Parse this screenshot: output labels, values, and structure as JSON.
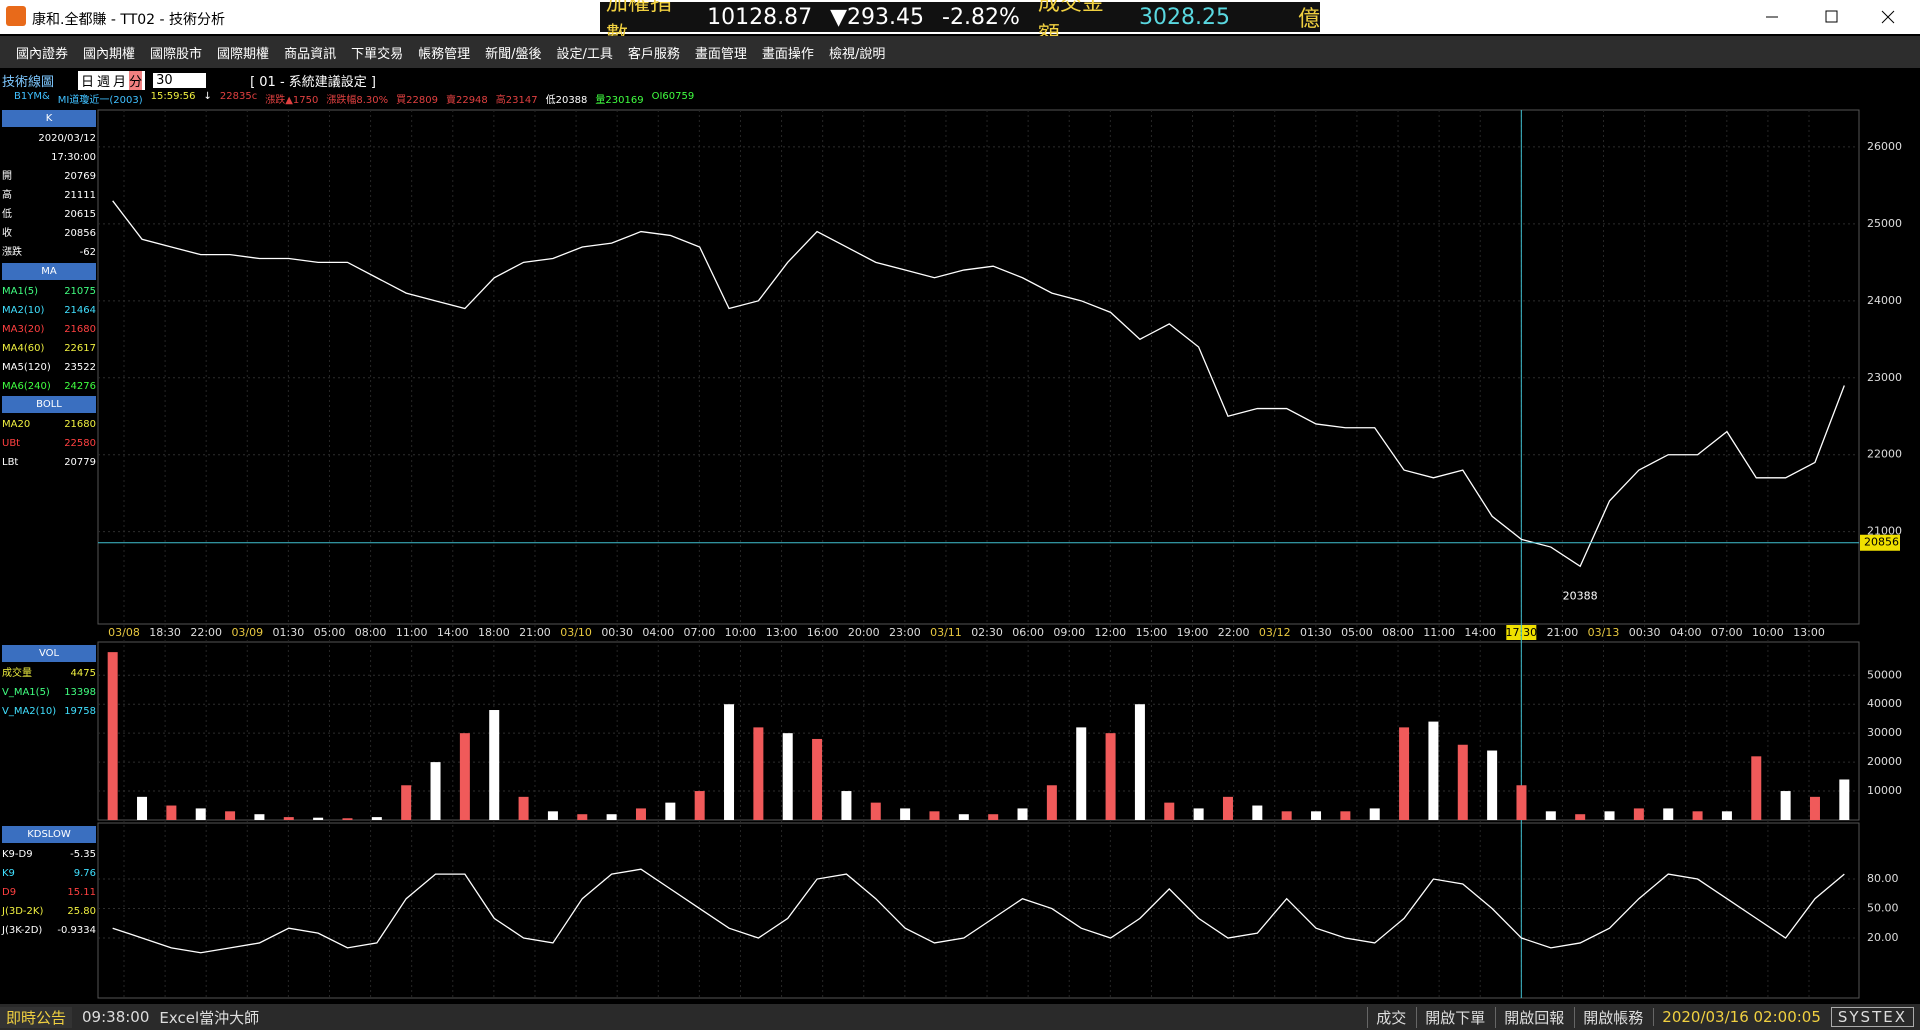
{
  "title": "康和.全都賺 - TT02 - 技術分析",
  "ticker": {
    "index_label": "加權指數",
    "index_value": "10128.87",
    "change": "▼293.45",
    "pct": "-2.82%",
    "amount_label": "成交金額",
    "amount": "3028.25",
    "unit": "億"
  },
  "menu": [
    "國內證券",
    "國內期權",
    "國際股市",
    "國際期權",
    "商品資訊",
    "下單交易",
    "帳務管理",
    "新聞/盤後",
    "設定/工具",
    "客戶服務",
    "畫面管理",
    "畫面操作",
    "檢視/說明"
  ],
  "toolbar": {
    "title": "技術線圖",
    "periods": [
      "日",
      "週",
      "月",
      "分"
    ],
    "interval": "30",
    "setting": "[ 01 - 系統建議設定 ]"
  },
  "info_row": [
    "B1YM&",
    "MI道瓊近一(2003)",
    "15:59:56",
    "↓",
    "22835c",
    "漲跌▲1750",
    "漲跌幅8.30%",
    "買22809",
    "賣22948",
    "高23147",
    "低20388",
    "量230169",
    "OI60759"
  ],
  "side_panels": [
    {
      "header": "K",
      "rows": [
        {
          "value": "2020/03/12"
        },
        {
          "value": "17:30:00"
        },
        {
          "label": "開",
          "value": "20769"
        },
        {
          "label": "高",
          "value": "21111"
        },
        {
          "label": "低",
          "value": "20615"
        },
        {
          "label": "收",
          "value": "20856"
        },
        {
          "label": "漲跌",
          "value": "-62"
        }
      ]
    },
    {
      "header": "MA",
      "rows": [
        {
          "label": "MA1(5)",
          "value": "21075"
        },
        {
          "label": "MA2(10)",
          "value": "21464"
        },
        {
          "label": "MA3(20)",
          "value": "21680"
        },
        {
          "label": "MA4(60)",
          "value": "22617"
        },
        {
          "label": "MA5(120)",
          "value": "23522"
        },
        {
          "label": "MA6(240)",
          "value": "24276"
        }
      ]
    },
    {
      "header": "BOLL",
      "rows": [
        {
          "label": "MA20",
          "value": "21680"
        },
        {
          "label": "UBt",
          "value": "22580"
        },
        {
          "label": "LBt",
          "value": "20779"
        }
      ]
    },
    {
      "header": "VOL",
      "rows": [
        {
          "label": "成交量",
          "value": "4475"
        },
        {
          "label": "V_MA1(5)",
          "value": "13398"
        },
        {
          "label": "V_MA2(10)",
          "value": "19758"
        }
      ]
    },
    {
      "header": "KDSLOW",
      "rows": [
        {
          "label": "K9-D9",
          "value": "-5.35"
        },
        {
          "label": "K9",
          "value": "9.76"
        },
        {
          "label": "D9",
          "value": "15.11"
        },
        {
          "label": "J(3D-2K)",
          "value": "25.80"
        },
        {
          "label": "J(3K-2D)",
          "value": "-0.9334"
        }
      ]
    }
  ],
  "chart_data": [
    {
      "type": "line",
      "series": [
        {
          "color": "#ffffff",
          "values": [
            25300,
            24800,
            24700,
            24600,
            24600,
            24550,
            24550,
            24500,
            24500,
            24300,
            24100,
            24000,
            23900,
            24300,
            24500,
            24550,
            24700,
            24750,
            24900,
            24850,
            24700,
            23900,
            24000,
            24500,
            24900,
            24700,
            24500,
            24400,
            24300,
            24400,
            24450,
            24300,
            24100,
            24000,
            23850,
            23500,
            23700,
            23400,
            22500,
            22600,
            22600,
            22400,
            22350,
            22350,
            21800,
            21700,
            21800,
            21200,
            20900,
            20800,
            20550,
            21400,
            21800,
            22000,
            22000,
            22300,
            21700,
            21700,
            21900,
            22900
          ]
        }
      ],
      "ylim": [
        19800,
        26480
      ],
      "yticks": [
        21000,
        22000,
        23000,
        24000,
        25000,
        26000
      ],
      "time_labels": [
        "03/08",
        "18:30",
        "22:00",
        "03/09",
        "01:30",
        "05:00",
        "08:00",
        "11:00",
        "14:00",
        "18:00",
        "21:00",
        "03/10",
        "00:30",
        "04:00",
        "07:00",
        "10:00",
        "13:00",
        "16:00",
        "20:00",
        "23:00",
        "03/11",
        "02:30",
        "06:00",
        "09:00",
        "12:00",
        "15:00",
        "19:00",
        "22:00",
        "03/12",
        "01:30",
        "05:00",
        "08:00",
        "11:00",
        "14:00",
        "17:30",
        "21:00",
        "03/13",
        "00:30",
        "04:00",
        "07:00",
        "10:00",
        "13:00"
      ],
      "low_label": "20388",
      "price_tag": 20856
    },
    {
      "type": "bar",
      "color": "#f05a5a",
      "values": [
        58000,
        8000,
        5000,
        4000,
        3000,
        2000,
        1000,
        800,
        600,
        1000,
        12000,
        20000,
        30000,
        38000,
        8000,
        3000,
        2000,
        2000,
        4000,
        6000,
        10000,
        40000,
        32000,
        30000,
        28000,
        10000,
        6000,
        4000,
        3000,
        2000,
        2000,
        4000,
        12000,
        32000,
        30000,
        40000,
        6000,
        4000,
        8000,
        5000,
        3000,
        3000,
        3000,
        4000,
        32000,
        34000,
        26000,
        24000,
        12000,
        3000,
        2000,
        3000,
        4000,
        4000,
        3000,
        3000,
        22000,
        10000,
        8000,
        14000
      ],
      "ylim": [
        0,
        61500
      ],
      "yticks": [
        10000,
        20000,
        30000,
        40000,
        50000
      ]
    },
    {
      "type": "line",
      "series": [
        {
          "color": "#ffffff",
          "values": [
            30,
            20,
            10,
            5,
            10,
            15,
            30,
            25,
            10,
            15,
            60,
            85,
            85,
            40,
            20,
            15,
            60,
            85,
            90,
            70,
            50,
            30,
            20,
            40,
            80,
            85,
            60,
            30,
            15,
            20,
            40,
            60,
            50,
            30,
            20,
            40,
            70,
            40,
            20,
            25,
            60,
            30,
            20,
            15,
            40,
            80,
            75,
            50,
            20,
            10,
            15,
            30,
            60,
            85,
            80,
            60,
            40,
            20,
            60,
            85
          ]
        }
      ],
      "ylim": [
        -41,
        137
      ],
      "yticks": [
        {
          "value": 20,
          "label": "20.00"
        },
        {
          "value": 50,
          "label": "50.00"
        },
        {
          "value": 80,
          "label": "80.00"
        }
      ]
    }
  ],
  "status": {
    "label": "即時公告",
    "time": "09:38:00",
    "text": "Excel當沖大師",
    "buttons": [
      "成交",
      "開啟下單",
      "開啟回報",
      "開啟帳務"
    ],
    "clock": "2020/03/16 02:00:05",
    "brand": "SYSTEX"
  }
}
